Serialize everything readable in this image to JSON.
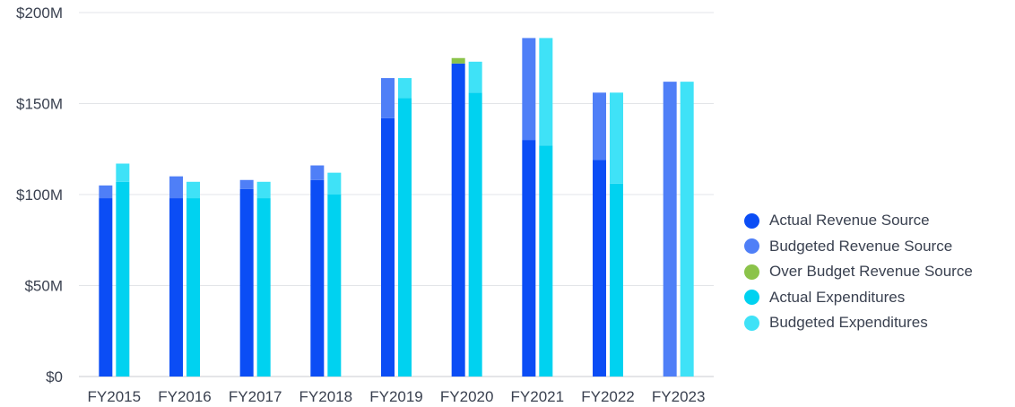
{
  "chart_data": {
    "type": "bar",
    "categories": [
      "FY2015",
      "FY2016",
      "FY2017",
      "FY2018",
      "FY2019",
      "FY2020",
      "FY2021",
      "FY2022",
      "FY2023"
    ],
    "y_ticks": [
      "$0",
      "$50M",
      "$100M",
      "$150M",
      "$200M"
    ],
    "ylim": [
      0,
      200
    ],
    "y_unit": "millions of dollars",
    "grid": "horizontal",
    "legend_position": "right",
    "series": [
      {
        "name": "Actual Revenue Source",
        "color": "#0b4df5",
        "stack": "revenue",
        "values": [
          98,
          98,
          103,
          108,
          142,
          172,
          130,
          119,
          0
        ]
      },
      {
        "name": "Budgeted Revenue Source",
        "color": "#4f7ff7",
        "stack": "revenue",
        "values": [
          7,
          12,
          5,
          8,
          22,
          0,
          56,
          37,
          162
        ]
      },
      {
        "name": "Over Budget Revenue Source",
        "color": "#8bc34a",
        "stack": "revenue",
        "values": [
          0,
          0,
          0,
          0,
          0,
          3,
          0,
          0,
          0
        ]
      },
      {
        "name": "Actual Expenditures",
        "color": "#00d2f0",
        "stack": "expenditures",
        "values": [
          107,
          98,
          98,
          100,
          153,
          156,
          127,
          106,
          0
        ]
      },
      {
        "name": "Budgeted Expenditures",
        "color": "#3fe2f7",
        "stack": "expenditures",
        "values": [
          10,
          9,
          9,
          12,
          11,
          17,
          59,
          50,
          162
        ]
      }
    ]
  }
}
